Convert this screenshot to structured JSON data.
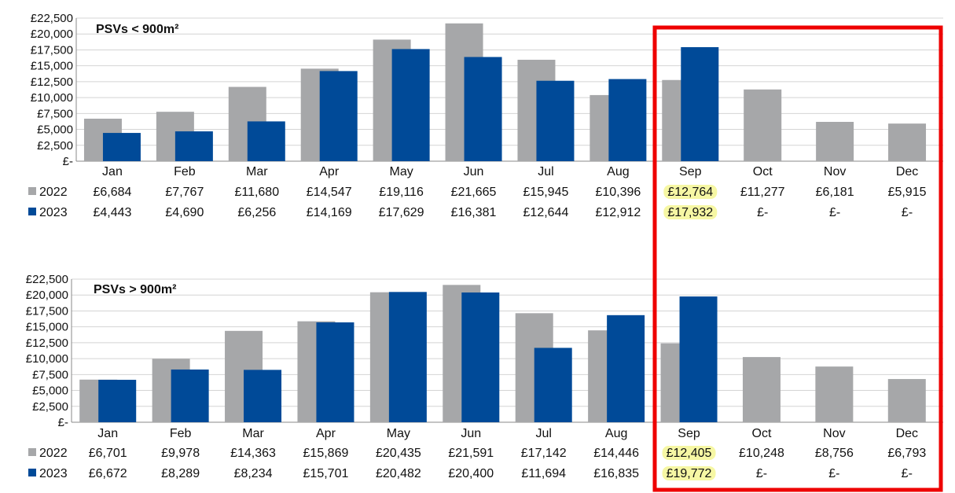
{
  "colors": {
    "y2022": "#a6a7a9",
    "y2023": "#004a98",
    "highlight_box": "#ee0000",
    "highlight_text": "#f6f7a4"
  },
  "chart_data": [
    {
      "type": "bar",
      "title": "PSVs < 900m²",
      "categories": [
        "Jan",
        "Feb",
        "Mar",
        "Apr",
        "May",
        "Jun",
        "Jul",
        "Aug",
        "Sep",
        "Oct",
        "Nov",
        "Dec"
      ],
      "ylim": [
        0,
        22500
      ],
      "yticks": [
        "£-",
        "£2,500",
        "£5,000",
        "£7,500",
        "£10,000",
        "£12,500",
        "£15,000",
        "£17,500",
        "£20,000",
        "£22,500"
      ],
      "series": [
        {
          "name": "2022",
          "values": [
            6684,
            7767,
            11680,
            14547,
            19116,
            21665,
            15945,
            10396,
            12764,
            11277,
            6181,
            5915
          ],
          "labels": [
            "£6,684",
            "£7,767",
            "£11,680",
            "£14,547",
            "£19,116",
            "£21,665",
            "£15,945",
            "£10,396",
            "£12,764",
            "£11,277",
            "£6,181",
            "£5,915"
          ]
        },
        {
          "name": "2023",
          "values": [
            4443,
            4690,
            6256,
            14169,
            17629,
            16381,
            12644,
            12912,
            17932,
            null,
            null,
            null
          ],
          "labels": [
            "£4,443",
            "£4,690",
            "£6,256",
            "£14,169",
            "£17,629",
            "£16,381",
            "£12,644",
            "£12,912",
            "£17,932",
            "£-",
            "£-",
            "£-"
          ]
        }
      ],
      "highlighted_category": "Sep"
    },
    {
      "type": "bar",
      "title": "PSVs > 900m²",
      "categories": [
        "Jan",
        "Feb",
        "Mar",
        "Apr",
        "May",
        "Jun",
        "Jul",
        "Aug",
        "Sep",
        "Oct",
        "Nov",
        "Dec"
      ],
      "ylim": [
        0,
        22500
      ],
      "yticks": [
        "£-",
        "£2,500",
        "£5,000",
        "£7,500",
        "£10,000",
        "£12,500",
        "£15,000",
        "£17,500",
        "£20,000",
        "£22,500"
      ],
      "series": [
        {
          "name": "2022",
          "values": [
            6701,
            9978,
            14363,
            15869,
            20435,
            21591,
            17142,
            14446,
            12405,
            10248,
            8756,
            6793
          ],
          "labels": [
            "£6,701",
            "£9,978",
            "£14,363",
            "£15,869",
            "£20,435",
            "£21,591",
            "£17,142",
            "£14,446",
            "£12,405",
            "£10,248",
            "£8,756",
            "£6,793"
          ]
        },
        {
          "name": "2023",
          "values": [
            6672,
            8289,
            8234,
            15701,
            20482,
            20400,
            11694,
            16835,
            19772,
            null,
            null,
            null
          ],
          "labels": [
            "£6,672",
            "£8,289",
            "£8,234",
            "£15,701",
            "£20,482",
            "£20,400",
            "£11,694",
            "£16,835",
            "£19,772",
            "£-",
            "£-",
            "£-"
          ]
        }
      ],
      "highlighted_category": "Sep"
    }
  ]
}
